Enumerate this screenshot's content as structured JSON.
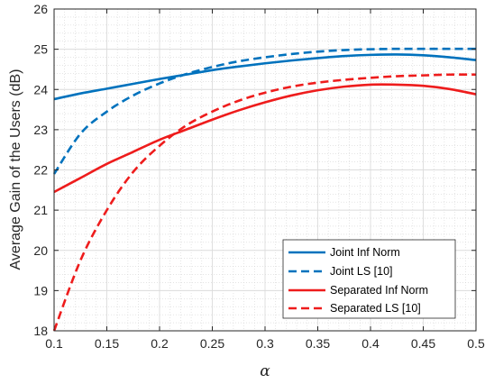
{
  "chart_data": {
    "type": "line",
    "title": "",
    "xlabel": "α",
    "ylabel": "Average Gain of the Users (dB)",
    "xlim": [
      0.1,
      0.5
    ],
    "ylim": [
      18,
      26
    ],
    "xticks": [
      0.1,
      0.15,
      0.2,
      0.25,
      0.3,
      0.35,
      0.4,
      0.45,
      0.5
    ],
    "yticks": [
      18,
      19,
      20,
      21,
      22,
      23,
      24,
      25,
      26
    ],
    "grid": true,
    "minor_grid": true,
    "legend_position": "bottom-right",
    "x": [
      0.1,
      0.125,
      0.15,
      0.175,
      0.2,
      0.225,
      0.25,
      0.275,
      0.3,
      0.325,
      0.35,
      0.375,
      0.4,
      0.425,
      0.45,
      0.475,
      0.5
    ],
    "series": [
      {
        "name": "Joint Inf Norm",
        "color": "#0072BD",
        "dash": "solid",
        "values": [
          23.76,
          23.9,
          24.02,
          24.14,
          24.26,
          24.37,
          24.48,
          24.57,
          24.65,
          24.72,
          24.78,
          24.83,
          24.86,
          24.87,
          24.85,
          24.8,
          24.73
        ]
      },
      {
        "name": "Joint LS [10]",
        "color": "#0072BD",
        "dash": "dashed",
        "values": [
          21.9,
          22.9,
          23.45,
          23.85,
          24.15,
          24.38,
          24.56,
          24.7,
          24.8,
          24.88,
          24.94,
          24.98,
          25.0,
          25.01,
          25.01,
          25.01,
          25.01
        ]
      },
      {
        "name": "Separated Inf Norm",
        "color": "#EE1C1C",
        "dash": "solid",
        "values": [
          21.45,
          21.8,
          22.15,
          22.45,
          22.75,
          23.0,
          23.25,
          23.48,
          23.68,
          23.85,
          23.98,
          24.07,
          24.12,
          24.12,
          24.09,
          24.01,
          23.88
        ]
      },
      {
        "name": "Separated LS [10]",
        "color": "#EE1C1C",
        "dash": "dashed",
        "values": [
          18.0,
          19.75,
          21.0,
          21.95,
          22.6,
          23.1,
          23.45,
          23.72,
          23.92,
          24.07,
          24.17,
          24.24,
          24.29,
          24.33,
          24.35,
          24.37,
          24.37
        ]
      }
    ]
  }
}
